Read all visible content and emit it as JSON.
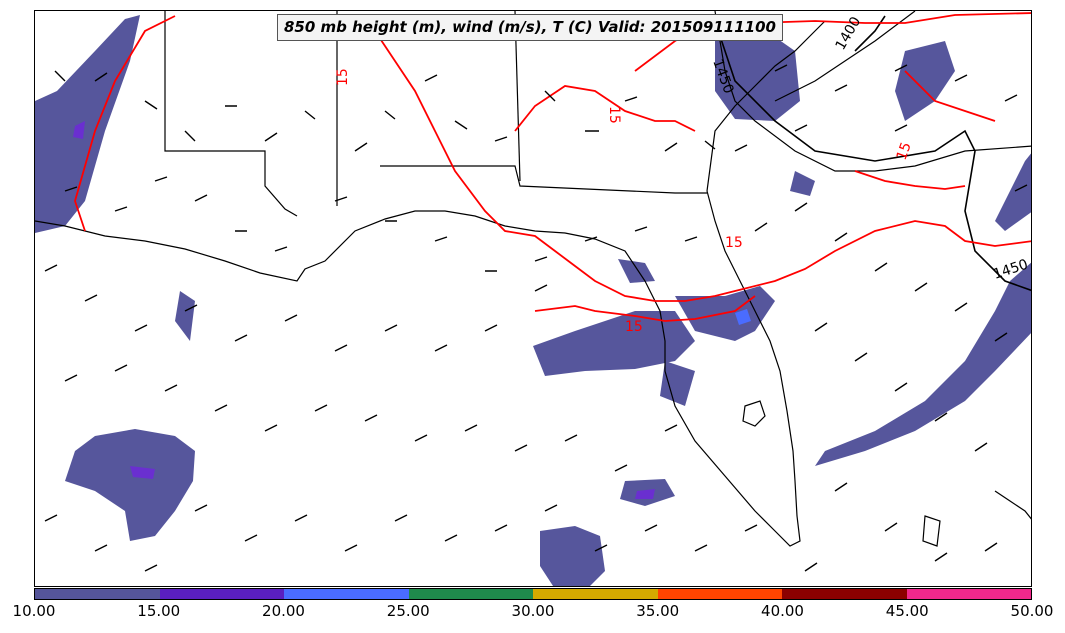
{
  "title": "850 mb height (m), wind (m/s), T (C) Valid: 201509111100",
  "contour_labels": {
    "height_1": "1450",
    "height_2": "1400",
    "height_3": "1450",
    "temp_1": "15",
    "temp_2": "15",
    "temp_3": "15",
    "temp_4": "15",
    "temp_5": "15"
  },
  "colorbar": {
    "ticks": [
      "10.00",
      "15.00",
      "20.00",
      "25.00",
      "30.00",
      "35.00",
      "40.00",
      "45.00",
      "50.00"
    ],
    "colors": [
      "#55559a",
      "#5a1fbf",
      "#4a6cff",
      "#1f8a4c",
      "#d4aa00",
      "#ff4400",
      "#8b0000",
      "#f0288c"
    ]
  },
  "colors": {
    "shading_base": "#56569c",
    "temperature_contour": "#ff0000",
    "height_contour": "#000000",
    "coastline": "#000000"
  }
}
